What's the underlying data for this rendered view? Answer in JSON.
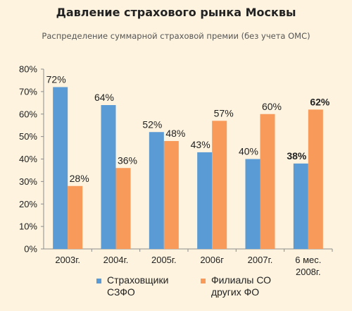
{
  "colors": {
    "series1": "#5b9bd5",
    "series2": "#f79a5a",
    "grid": "#b9b2a6"
  },
  "chart_data": {
    "type": "bar",
    "title": "Давление страхового рынка Москвы",
    "subtitle": "Распределение суммарной страховой премии (без учета ОМС)",
    "categories": [
      "2003г.",
      "2004г.",
      "2005г.",
      "2006г",
      "2007г.",
      "6 мес. 2008г."
    ],
    "category_lines": [
      [
        "2003г."
      ],
      [
        "2004г."
      ],
      [
        "2005г."
      ],
      [
        "2006г"
      ],
      [
        "2007г."
      ],
      [
        "6 мес.",
        "2008г."
      ]
    ],
    "series": [
      {
        "name": "Страховщики СЗФО",
        "values": [
          72,
          64,
          52,
          43,
          40,
          38
        ],
        "labels": [
          "72%",
          "64%",
          "52%",
          "43%",
          "40%",
          "38%"
        ],
        "bold": [
          false,
          false,
          false,
          false,
          false,
          true
        ]
      },
      {
        "name": "Филиалы СО других ФО",
        "values": [
          28,
          36,
          48,
          57,
          60,
          62
        ],
        "labels": [
          "28%",
          "36%",
          "48%",
          "57%",
          "60%",
          "62%"
        ],
        "bold": [
          false,
          false,
          false,
          false,
          false,
          true
        ]
      }
    ],
    "yticks": [
      "0%",
      "10%",
      "20%",
      "30%",
      "40%",
      "50%",
      "60%",
      "70%",
      "80%"
    ],
    "ylim": [
      0,
      80
    ],
    "grid": false,
    "legend": "bottom"
  }
}
